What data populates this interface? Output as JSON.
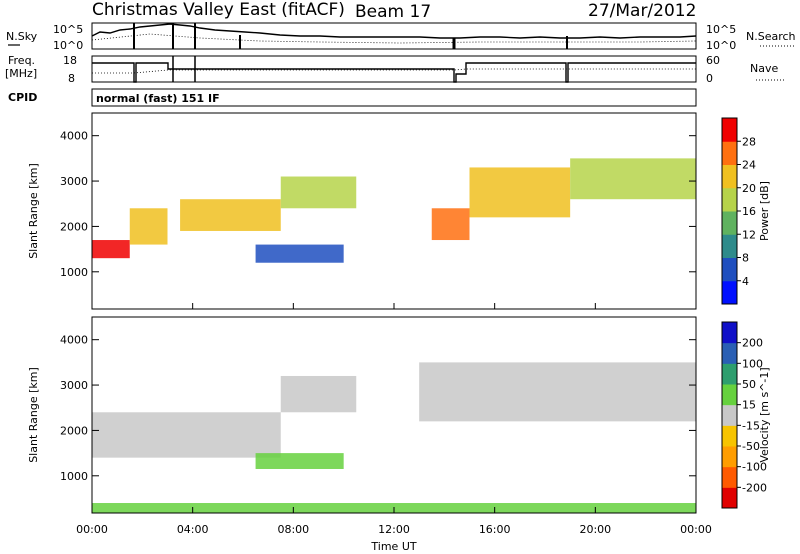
{
  "header": {
    "title": "Christmas Valley East (fitACF)",
    "beam": "Beam 17",
    "date": "27/Mar/2012"
  },
  "top_panels": {
    "nsky_label": "N.Sky",
    "nsky_ticks": [
      "10^5",
      "10^0"
    ],
    "nsearch_label": "N.Search",
    "nsearch_ticks": [
      "10^5",
      "10^0"
    ],
    "freq_label_1": "Freq.",
    "freq_label_2": "[MHz]",
    "freq_ticks": [
      "18",
      "8"
    ],
    "nave_label": "Nave",
    "nave_ticks": [
      "60",
      "0"
    ],
    "cpid_label": "CPID",
    "cpid_text": "normal (fast) 151 IF"
  },
  "chart_data": [
    {
      "type": "heatmap",
      "name": "power",
      "ylabel": "Slant Range [km]",
      "ylim": [
        180,
        4500
      ],
      "yticks": [
        1000,
        2000,
        3000,
        4000
      ],
      "xlim": [
        0,
        24
      ],
      "xticks": [
        "00:00",
        "04:00",
        "08:00",
        "12:00",
        "16:00",
        "20:00",
        "00:00"
      ],
      "colorbar": {
        "label": "Power [dB]",
        "ticks": [
          4,
          8,
          12,
          16,
          20,
          24,
          28
        ],
        "range": [
          0,
          32
        ],
        "colors": [
          "#0010ff",
          "#1f4fbf",
          "#2e8b8b",
          "#5fb25f",
          "#b6d34a",
          "#f0c020",
          "#ff7010",
          "#f00000"
        ]
      },
      "features": [
        {
          "t_start": 0.0,
          "t_end": 1.5,
          "range": [
            1300,
            1700
          ],
          "value": 28
        },
        {
          "t_start": 1.5,
          "t_end": 3.0,
          "range": [
            1600,
            2400
          ],
          "value": 20
        },
        {
          "t_start": 3.5,
          "t_end": 7.5,
          "range": [
            1900,
            2600
          ],
          "value": 22
        },
        {
          "t_start": 7.5,
          "t_end": 10.5,
          "range": [
            2400,
            3100
          ],
          "value": 16
        },
        {
          "t_start": 6.5,
          "t_end": 10.0,
          "range": [
            1200,
            1600
          ],
          "value": 6
        },
        {
          "t_start": 13.5,
          "t_end": 15.0,
          "range": [
            1700,
            2400
          ],
          "value": 26
        },
        {
          "t_start": 15.0,
          "t_end": 19.0,
          "range": [
            2200,
            3300
          ],
          "value": 22
        },
        {
          "t_start": 19.0,
          "t_end": 24.0,
          "range": [
            2600,
            3500
          ],
          "value": 18
        }
      ]
    },
    {
      "type": "heatmap",
      "name": "velocity",
      "ylabel": "Slant Range [km]",
      "xlabel": "Time UT",
      "ylim": [
        180,
        4500
      ],
      "yticks": [
        1000,
        2000,
        3000,
        4000
      ],
      "xlim": [
        0,
        24
      ],
      "xticks": [
        "00:00",
        "04:00",
        "08:00",
        "12:00",
        "16:00",
        "20:00",
        "00:00"
      ],
      "colorbar": {
        "label": "Velocity [m s^-1]",
        "ticks": [
          "-200",
          "-100",
          "-50",
          "-15",
          "15",
          "50",
          "100",
          "200"
        ],
        "colors": [
          "#e00000",
          "#ff5a00",
          "#ff9d00",
          "#f7c400",
          "#c8c8c8",
          "#66d13e",
          "#2e9e6e",
          "#2a5fb4",
          "#1010c8"
        ]
      },
      "features": [
        {
          "t_start": 0.0,
          "t_end": 7.5,
          "range": [
            1400,
            2400
          ],
          "value": 0
        },
        {
          "t_start": 7.5,
          "t_end": 10.5,
          "range": [
            2400,
            3200
          ],
          "value": 0
        },
        {
          "t_start": 6.5,
          "t_end": 10.0,
          "range": [
            1150,
            1500
          ],
          "value": 30
        },
        {
          "t_start": 13.0,
          "t_end": 24.0,
          "range": [
            2200,
            3500
          ],
          "value": 0
        },
        {
          "t_start": 0.0,
          "t_end": 24.0,
          "range": [
            180,
            400
          ],
          "value": 30
        }
      ]
    }
  ]
}
